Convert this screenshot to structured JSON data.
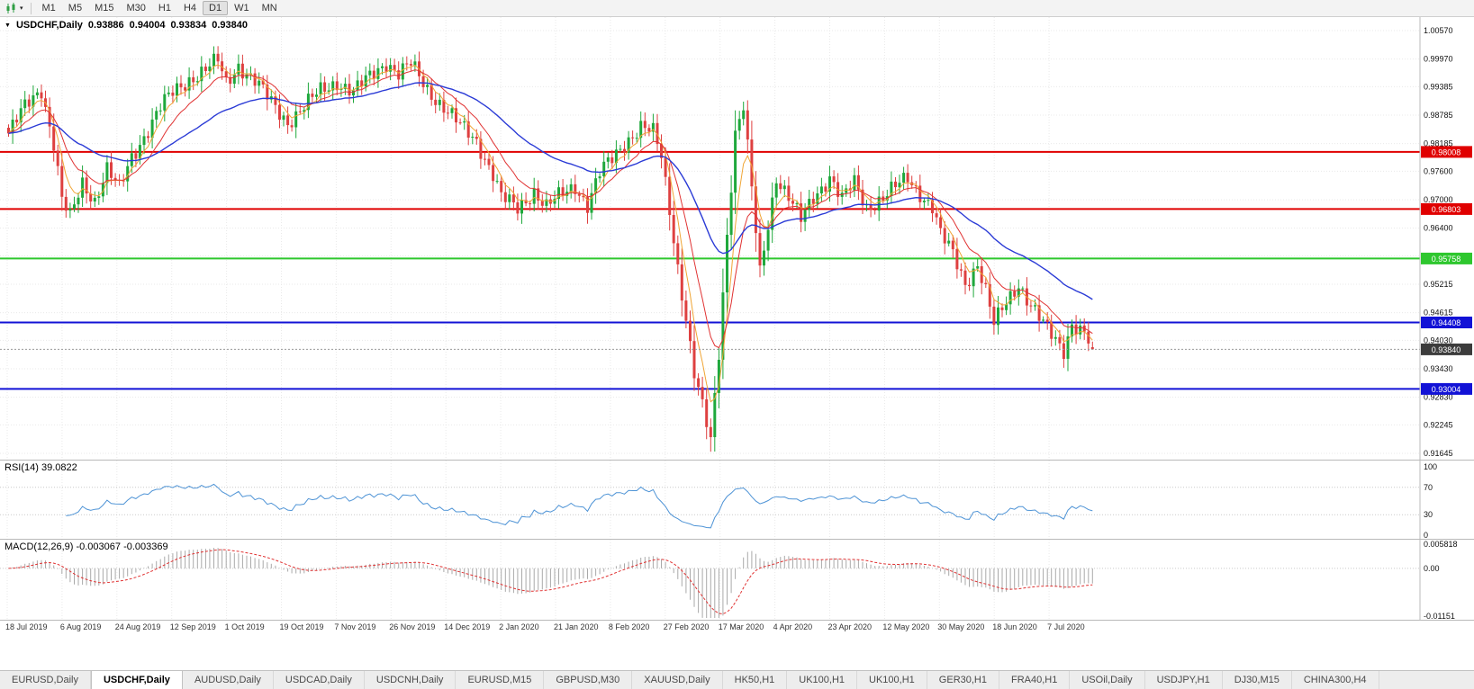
{
  "toolbar": {
    "chart_type_icon": "candlestick-chart-icon",
    "timeframes": [
      "M1",
      "M5",
      "M15",
      "M30",
      "H1",
      "H4",
      "D1",
      "W1",
      "MN"
    ],
    "active_timeframe": "D1"
  },
  "main_chart": {
    "symbol_label": "USDCHF,Daily",
    "open": "0.93886",
    "high": "0.94004",
    "low": "0.93834",
    "close": "0.93840",
    "price_ticks": [
      "1.00570",
      "0.99970",
      "0.99385",
      "0.98785",
      "0.98185",
      "0.97600",
      "0.97000",
      "0.96400",
      "0.95815",
      "0.95215",
      "0.94615",
      "0.94030",
      "0.93430",
      "0.92830",
      "0.92245",
      "0.91645"
    ],
    "levels": [
      {
        "value": 0.98008,
        "label": "0.98008",
        "color": "#e00000"
      },
      {
        "value": 0.96803,
        "label": "0.96803",
        "color": "#e00000"
      },
      {
        "value": 0.95758,
        "label": "0.95758",
        "color": "#2ec72e"
      },
      {
        "value": 0.94408,
        "label": "0.94408",
        "color": "#1212d6"
      },
      {
        "value": 0.93004,
        "label": "0.93004",
        "color": "#1212d6"
      }
    ],
    "current_price": {
      "value": 0.9384,
      "label": "0.93840",
      "badge_color": "#3c3c3c"
    },
    "colors": {
      "candle_up": "#1fa83c",
      "candle_down": "#de4040",
      "ma_fast": "#f0a535",
      "ma_medium": "#e03232",
      "ma_slow": "#2b3bd6",
      "grid": "#e9e9e9",
      "scale_text": "#111111",
      "current_price_line": "#999999"
    }
  },
  "rsi_panel": {
    "label": "RSI(14) 39.0822",
    "ticks": [
      "100",
      "70",
      "30",
      "0"
    ],
    "level_lines": [
      70,
      30
    ],
    "line_color": "#4f94d6"
  },
  "macd_panel": {
    "label": "MACD(12,26,9) -0.003067 -0.003369",
    "ticks": [
      "0.005818",
      "0.00",
      "-0.01151"
    ],
    "histogram_color": "#a9a9a9",
    "signal_color": "#e03232"
  },
  "date_axis": [
    "18 Jul 2019",
    "6 Aug 2019",
    "24 Aug 2019",
    "12 Sep 2019",
    "1 Oct 2019",
    "19 Oct 2019",
    "7 Nov 2019",
    "26 Nov 2019",
    "14 Dec 2019",
    "2 Jan 2020",
    "21 Jan 2020",
    "8 Feb 2020",
    "27 Feb 2020",
    "17 Mar 2020",
    "4 Apr 2020",
    "23 Apr 2020",
    "12 May 2020",
    "30 May 2020",
    "18 Jun 2020",
    "7 Jul 2020"
  ],
  "tabs": [
    "EURUSD,Daily",
    "USDCHF,Daily",
    "AUDUSD,Daily",
    "USDCAD,Daily",
    "USDCNH,Daily",
    "EURUSD,M15",
    "GBPUSD,M30",
    "XAUUSD,Daily",
    "HK50,H1",
    "UK100,H1",
    "UK100,H1",
    "GER30,H1",
    "FRA40,H1",
    "USOil,Daily",
    "USDJPY,H1",
    "DJ30,M15",
    "CHINA300,H4"
  ],
  "active_tab": "USDCHF,Daily",
  "chart_data": {
    "type": "candlestick",
    "symbol": "USDCHF",
    "timeframe": "Daily",
    "x_range": [
      "18 Jul 2019",
      "22 Jul 2020"
    ],
    "visible_price_range": [
      0.91645,
      1.0057
    ],
    "y_axis_ticks": [
      1.0057,
      0.9997,
      0.99385,
      0.98785,
      0.98185,
      0.976,
      0.97,
      0.964,
      0.95815,
      0.95215,
      0.94615,
      0.9403,
      0.9343,
      0.9283,
      0.92245,
      0.91645
    ],
    "last_bar": {
      "open": 0.93886,
      "high": 0.94004,
      "low": 0.93834,
      "close": 0.9384
    },
    "crash_low": 0.9168,
    "bar_count": 265,
    "horizontal_lines": [
      {
        "price": 0.98008,
        "color": "red"
      },
      {
        "price": 0.96803,
        "color": "red"
      },
      {
        "price": 0.95758,
        "color": "green"
      },
      {
        "price": 0.94408,
        "color": "blue"
      },
      {
        "price": 0.93004,
        "color": "blue"
      }
    ],
    "moving_averages": [
      {
        "name": "fast-ma",
        "period": 5,
        "color": "#f0a535"
      },
      {
        "name": "medium-ma",
        "period": 12,
        "color": "#e03232"
      },
      {
        "name": "slow-ma",
        "period": 40,
        "color": "#2b3bd6"
      }
    ],
    "indicators": [
      {
        "name": "RSI",
        "period": 14,
        "current": 39.0822,
        "scale": [
          0,
          100
        ],
        "levels": [
          30,
          70
        ]
      },
      {
        "name": "MACD",
        "params": [
          12,
          26,
          9
        ],
        "current_macd": -0.003067,
        "current_signal": -0.003369,
        "scale": [
          -0.01151,
          0.005818
        ]
      }
    ],
    "close_waypoints": [
      [
        0,
        0.984
      ],
      [
        4,
        0.9895
      ],
      [
        8,
        0.9935
      ],
      [
        11,
        0.982
      ],
      [
        13,
        0.97
      ],
      [
        15,
        0.966
      ],
      [
        18,
        0.9735
      ],
      [
        21,
        0.97
      ],
      [
        24,
        0.9765
      ],
      [
        27,
        0.972
      ],
      [
        30,
        0.979
      ],
      [
        34,
        0.985
      ],
      [
        37,
        0.9895
      ],
      [
        40,
        0.9925
      ],
      [
        44,
        0.9955
      ],
      [
        48,
        0.9975
      ],
      [
        51,
        0.9992
      ],
      [
        53,
        0.9945
      ],
      [
        56,
        0.9985
      ],
      [
        60,
        0.995
      ],
      [
        64,
        0.9905
      ],
      [
        68,
        0.9865
      ],
      [
        72,
        0.9895
      ],
      [
        76,
        0.993
      ],
      [
        80,
        0.995
      ],
      [
        84,
        0.9925
      ],
      [
        88,
        0.996
      ],
      [
        92,
        0.9992
      ],
      [
        95,
        0.9965
      ],
      [
        98,
        0.9985
      ],
      [
        102,
        0.9935
      ],
      [
        106,
        0.9895
      ],
      [
        110,
        0.9855
      ],
      [
        114,
        0.9825
      ],
      [
        118,
        0.9755
      ],
      [
        120,
        0.9705
      ],
      [
        124,
        0.968
      ],
      [
        128,
        0.972
      ],
      [
        131,
        0.9685
      ],
      [
        134,
        0.9705
      ],
      [
        138,
        0.973
      ],
      [
        141,
        0.969
      ],
      [
        144,
        0.9755
      ],
      [
        147,
        0.9785
      ],
      [
        151,
        0.983
      ],
      [
        154,
        0.9855
      ],
      [
        157,
        0.984
      ],
      [
        159,
        0.979
      ],
      [
        161,
        0.968
      ],
      [
        163,
        0.956
      ],
      [
        165,
        0.945
      ],
      [
        167,
        0.933
      ],
      [
        169,
        0.926
      ],
      [
        171,
        0.919
      ],
      [
        173,
        0.938
      ],
      [
        175,
        0.963
      ],
      [
        177,
        0.984
      ],
      [
        179,
        0.9895
      ],
      [
        181,
        0.972
      ],
      [
        183,
        0.9545
      ],
      [
        185,
        0.965
      ],
      [
        187,
        0.975
      ],
      [
        190,
        0.9705
      ],
      [
        193,
        0.9655
      ],
      [
        196,
        0.9705
      ],
      [
        200,
        0.975
      ],
      [
        203,
        0.97
      ],
      [
        206,
        0.9735
      ],
      [
        209,
        0.9685
      ],
      [
        213,
        0.9705
      ],
      [
        216,
        0.9725
      ],
      [
        219,
        0.9745
      ],
      [
        222,
        0.9715
      ],
      [
        225,
        0.9685
      ],
      [
        227,
        0.9625
      ],
      [
        230,
        0.9585
      ],
      [
        233,
        0.9525
      ],
      [
        236,
        0.9565
      ],
      [
        238,
        0.9505
      ],
      [
        240,
        0.9435
      ],
      [
        243,
        0.9485
      ],
      [
        246,
        0.9525
      ],
      [
        249,
        0.9475
      ],
      [
        252,
        0.9435
      ],
      [
        255,
        0.9405
      ],
      [
        257,
        0.9385
      ],
      [
        259,
        0.944
      ],
      [
        262,
        0.9415
      ],
      [
        264,
        0.9384
      ]
    ]
  }
}
